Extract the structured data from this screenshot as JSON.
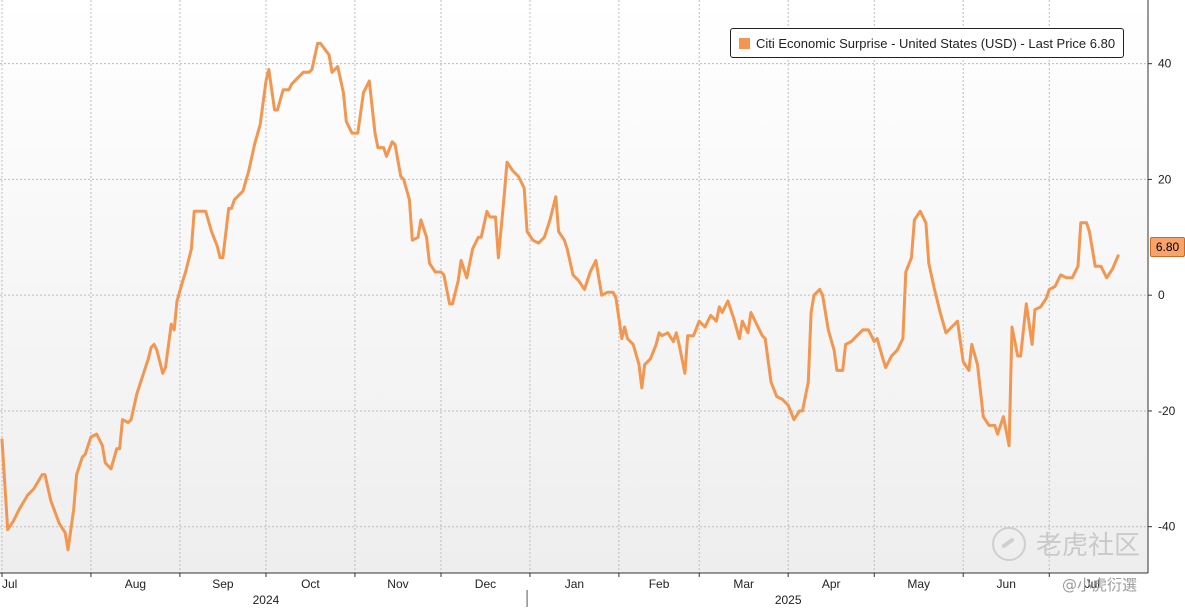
{
  "legend": {
    "label": "Citi Economic Surprise - United States (USD) - Last Price 6.80",
    "color": "#f29650"
  },
  "last_price_tag": "6.80",
  "watermark": {
    "text": "老虎社区",
    "handle": "@小虎衍選"
  },
  "colors": {
    "line": "#f29650",
    "grid": "#bdbdbd",
    "background_top": "#ffffff",
    "background_bottom": "#eeeeee"
  },
  "chart_data": {
    "type": "line",
    "title": "",
    "xlabel": "",
    "ylabel": "",
    "ylim": [
      -48,
      51
    ],
    "y_ticks": [
      40,
      20,
      0,
      -20,
      -40
    ],
    "y_tick_labels": [
      "40",
      "20",
      "0",
      "-20",
      "-40"
    ],
    "grid": true,
    "legend_position": "top-right",
    "x_range": [
      "2024-07-01",
      "2025-07-26"
    ],
    "x_ticks": [
      {
        "date": "2024-07-01",
        "label": "Jul"
      },
      {
        "date": "2024-08-01",
        "label": "Aug"
      },
      {
        "date": "2024-09-01",
        "label": "Sep"
      },
      {
        "date": "2024-10-01",
        "label": "Oct"
      },
      {
        "date": "2024-11-01",
        "label": "Nov"
      },
      {
        "date": "2024-12-01",
        "label": "Dec"
      },
      {
        "date": "2025-01-01",
        "label": "Jan"
      },
      {
        "date": "2025-02-01",
        "label": "Feb"
      },
      {
        "date": "2025-03-01",
        "label": "Mar"
      },
      {
        "date": "2025-04-01",
        "label": "Apr"
      },
      {
        "date": "2025-05-01",
        "label": "May"
      },
      {
        "date": "2025-06-01",
        "label": "Jun"
      },
      {
        "date": "2025-07-01",
        "label": "Jul"
      }
    ],
    "year_labels": [
      {
        "date": "2024-10-01",
        "label": "2024"
      },
      {
        "date": "2025-04-01",
        "label": "2025"
      }
    ],
    "year_divider": "2024-12-31",
    "series": [
      {
        "color": "#f29650",
        "points": [
          [
            "2024-07-01",
            -25
          ],
          [
            "2024-07-03",
            -40.5
          ],
          [
            "2024-07-05",
            -39
          ],
          [
            "2024-07-07",
            -37
          ],
          [
            "2024-07-10",
            -34.5
          ],
          [
            "2024-07-12",
            -33.5
          ],
          [
            "2024-07-15",
            -31
          ],
          [
            "2024-07-16",
            -31
          ],
          [
            "2024-07-18",
            -35.5
          ],
          [
            "2024-07-21",
            -39.5
          ],
          [
            "2024-07-23",
            -41
          ],
          [
            "2024-07-24",
            -44
          ],
          [
            "2024-07-26",
            -37
          ],
          [
            "2024-07-27",
            -31
          ],
          [
            "2024-07-29",
            -28
          ],
          [
            "2024-07-30",
            -27.5
          ],
          [
            "2024-08-01",
            -24.5
          ],
          [
            "2024-08-03",
            -24
          ],
          [
            "2024-08-05",
            -26
          ],
          [
            "2024-08-06",
            -29
          ],
          [
            "2024-08-08",
            -30
          ],
          [
            "2024-08-10",
            -26.5
          ],
          [
            "2024-08-11",
            -26.5
          ],
          [
            "2024-08-12",
            -21.5
          ],
          [
            "2024-08-14",
            -22
          ],
          [
            "2024-08-15",
            -21.5
          ],
          [
            "2024-08-17",
            -17
          ],
          [
            "2024-08-19",
            -14
          ],
          [
            "2024-08-21",
            -11
          ],
          [
            "2024-08-22",
            -9
          ],
          [
            "2024-08-23",
            -8.5
          ],
          [
            "2024-08-24",
            -9.5
          ],
          [
            "2024-08-26",
            -13.5
          ],
          [
            "2024-08-27",
            -12.5
          ],
          [
            "2024-08-29",
            -5
          ],
          [
            "2024-08-30",
            -6
          ],
          [
            "2024-08-31",
            -1
          ],
          [
            "2024-09-02",
            2.5
          ],
          [
            "2024-09-03",
            4
          ],
          [
            "2024-09-05",
            8
          ],
          [
            "2024-09-06",
            14.5
          ],
          [
            "2024-09-09",
            14.5
          ],
          [
            "2024-09-10",
            14.5
          ],
          [
            "2024-09-12",
            11
          ],
          [
            "2024-09-14",
            8.5
          ],
          [
            "2024-09-15",
            6.5
          ],
          [
            "2024-09-16",
            6.5
          ],
          [
            "2024-09-18",
            15
          ],
          [
            "2024-09-19",
            15
          ],
          [
            "2024-09-20",
            16.5
          ],
          [
            "2024-09-23",
            18
          ],
          [
            "2024-09-25",
            21.5
          ],
          [
            "2024-09-27",
            26
          ],
          [
            "2024-09-29",
            29.5
          ],
          [
            "2024-10-01",
            37
          ],
          [
            "2024-10-02",
            39
          ],
          [
            "2024-10-04",
            32
          ],
          [
            "2024-10-05",
            32
          ],
          [
            "2024-10-07",
            35.5
          ],
          [
            "2024-10-09",
            35.5
          ],
          [
            "2024-10-10",
            36.5
          ],
          [
            "2024-10-12",
            37.5
          ],
          [
            "2024-10-14",
            38.5
          ],
          [
            "2024-10-16",
            38.5
          ],
          [
            "2024-10-17",
            39
          ],
          [
            "2024-10-19",
            43.5
          ],
          [
            "2024-10-20",
            43.5
          ],
          [
            "2024-10-23",
            41.5
          ],
          [
            "2024-10-24",
            38.5
          ],
          [
            "2024-10-26",
            39.5
          ],
          [
            "2024-10-28",
            35
          ],
          [
            "2024-10-29",
            30
          ],
          [
            "2024-10-31",
            28
          ],
          [
            "2024-11-02",
            28
          ],
          [
            "2024-11-04",
            35
          ],
          [
            "2024-11-06",
            37
          ],
          [
            "2024-11-08",
            28
          ],
          [
            "2024-11-09",
            25.5
          ],
          [
            "2024-11-11",
            25.5
          ],
          [
            "2024-11-12",
            24
          ],
          [
            "2024-11-14",
            26.5
          ],
          [
            "2024-11-15",
            26
          ],
          [
            "2024-11-17",
            20.5
          ],
          [
            "2024-11-18",
            20
          ],
          [
            "2024-11-20",
            16.5
          ],
          [
            "2024-11-21",
            9.5
          ],
          [
            "2024-11-23",
            10
          ],
          [
            "2024-11-24",
            13
          ],
          [
            "2024-11-26",
            10
          ],
          [
            "2024-11-27",
            5.5
          ],
          [
            "2024-11-29",
            4
          ],
          [
            "2024-12-01",
            4
          ],
          [
            "2024-12-02",
            3.5
          ],
          [
            "2024-12-04",
            -1.5
          ],
          [
            "2024-12-05",
            -1.5
          ],
          [
            "2024-12-07",
            2.5
          ],
          [
            "2024-12-08",
            6
          ],
          [
            "2024-12-10",
            3
          ],
          [
            "2024-12-12",
            8
          ],
          [
            "2024-12-14",
            10
          ],
          [
            "2024-12-15",
            10
          ],
          [
            "2024-12-17",
            14.5
          ],
          [
            "2024-12-18",
            13.5
          ],
          [
            "2024-12-20",
            13.5
          ],
          [
            "2024-12-21",
            6.5
          ],
          [
            "2024-12-23",
            17
          ],
          [
            "2024-12-24",
            23
          ],
          [
            "2024-12-26",
            21.5
          ],
          [
            "2024-12-28",
            20.5
          ],
          [
            "2024-12-30",
            18.5
          ],
          [
            "2024-12-31",
            11
          ],
          [
            "2025-01-02",
            9.5
          ],
          [
            "2025-01-04",
            9
          ],
          [
            "2025-01-06",
            10
          ],
          [
            "2025-01-08",
            13
          ],
          [
            "2025-01-10",
            17
          ],
          [
            "2025-01-11",
            11
          ],
          [
            "2025-01-13",
            9.5
          ],
          [
            "2025-01-14",
            8
          ],
          [
            "2025-01-16",
            3.5
          ],
          [
            "2025-01-18",
            2.5
          ],
          [
            "2025-01-20",
            1
          ],
          [
            "2025-01-22",
            4
          ],
          [
            "2025-01-24",
            6
          ],
          [
            "2025-01-26",
            0
          ],
          [
            "2025-01-28",
            0.5
          ],
          [
            "2025-01-30",
            0.5
          ],
          [
            "2025-01-31",
            -0.5
          ],
          [
            "2025-02-02",
            -7.5
          ],
          [
            "2025-02-03",
            -5.5
          ],
          [
            "2025-02-04",
            -7.5
          ],
          [
            "2025-02-06",
            -8.5
          ],
          [
            "2025-02-08",
            -12
          ],
          [
            "2025-02-09",
            -16
          ],
          [
            "2025-02-10",
            -12
          ],
          [
            "2025-02-12",
            -11
          ],
          [
            "2025-02-14",
            -8.5
          ],
          [
            "2025-02-15",
            -6.5
          ],
          [
            "2025-02-16",
            -7
          ],
          [
            "2025-02-18",
            -6.5
          ],
          [
            "2025-02-20",
            -8
          ],
          [
            "2025-02-21",
            -6.5
          ],
          [
            "2025-02-22",
            -8.5
          ],
          [
            "2025-02-24",
            -13.5
          ],
          [
            "2025-02-25",
            -7
          ],
          [
            "2025-02-27",
            -7
          ],
          [
            "2025-03-01",
            -4.5
          ],
          [
            "2025-03-03",
            -5.5
          ],
          [
            "2025-03-05",
            -3.5
          ],
          [
            "2025-03-07",
            -4.5
          ],
          [
            "2025-03-08",
            -2
          ],
          [
            "2025-03-09",
            -3
          ],
          [
            "2025-03-11",
            -1
          ],
          [
            "2025-03-13",
            -4
          ],
          [
            "2025-03-15",
            -7.5
          ],
          [
            "2025-03-16",
            -4.5
          ],
          [
            "2025-03-18",
            -6.5
          ],
          [
            "2025-03-19",
            -3
          ],
          [
            "2025-03-21",
            -5
          ],
          [
            "2025-03-23",
            -7
          ],
          [
            "2025-03-24",
            -7.5
          ],
          [
            "2025-03-26",
            -15
          ],
          [
            "2025-03-28",
            -17.5
          ],
          [
            "2025-03-30",
            -18
          ],
          [
            "2025-04-01",
            -19
          ],
          [
            "2025-04-03",
            -21.5
          ],
          [
            "2025-04-05",
            -20
          ],
          [
            "2025-04-06",
            -20
          ],
          [
            "2025-04-08",
            -15
          ],
          [
            "2025-04-09",
            -3
          ],
          [
            "2025-04-10",
            0
          ],
          [
            "2025-04-12",
            1
          ],
          [
            "2025-04-13",
            0
          ],
          [
            "2025-04-15",
            -6
          ],
          [
            "2025-04-17",
            -9.5
          ],
          [
            "2025-04-18",
            -13
          ],
          [
            "2025-04-20",
            -13
          ],
          [
            "2025-04-21",
            -8.5
          ],
          [
            "2025-04-23",
            -8
          ],
          [
            "2025-04-25",
            -7
          ],
          [
            "2025-04-27",
            -6
          ],
          [
            "2025-04-29",
            -6
          ],
          [
            "2025-05-01",
            -8
          ],
          [
            "2025-05-02",
            -7.5
          ],
          [
            "2025-05-04",
            -11
          ],
          [
            "2025-05-05",
            -12.5
          ],
          [
            "2025-05-07",
            -10.5
          ],
          [
            "2025-05-09",
            -9.5
          ],
          [
            "2025-05-11",
            -7.5
          ],
          [
            "2025-05-12",
            4
          ],
          [
            "2025-05-14",
            6.5
          ],
          [
            "2025-05-15",
            13
          ],
          [
            "2025-05-17",
            14.5
          ],
          [
            "2025-05-19",
            12.5
          ],
          [
            "2025-05-20",
            5.5
          ],
          [
            "2025-05-22",
            1
          ],
          [
            "2025-05-24",
            -3
          ],
          [
            "2025-05-26",
            -6.5
          ],
          [
            "2025-05-28",
            -5.5
          ],
          [
            "2025-05-30",
            -4.5
          ],
          [
            "2025-06-01",
            -11.5
          ],
          [
            "2025-06-03",
            -13
          ],
          [
            "2025-06-04",
            -8.5
          ],
          [
            "2025-06-06",
            -12
          ],
          [
            "2025-06-08",
            -21
          ],
          [
            "2025-06-10",
            -22.5
          ],
          [
            "2025-06-12",
            -22.5
          ],
          [
            "2025-06-13",
            -24
          ],
          [
            "2025-06-15",
            -21
          ],
          [
            "2025-06-17",
            -26
          ],
          [
            "2025-06-18",
            -5.5
          ],
          [
            "2025-06-20",
            -10.5
          ],
          [
            "2025-06-21",
            -10.5
          ],
          [
            "2025-06-23",
            -1.5
          ],
          [
            "2025-06-25",
            -8.5
          ],
          [
            "2025-06-26",
            -2.5
          ],
          [
            "2025-06-28",
            -2
          ],
          [
            "2025-06-30",
            -0.5
          ],
          [
            "2025-07-01",
            1
          ],
          [
            "2025-07-03",
            1.5
          ],
          [
            "2025-07-05",
            3.5
          ],
          [
            "2025-07-07",
            3
          ],
          [
            "2025-07-09",
            3
          ],
          [
            "2025-07-11",
            5
          ],
          [
            "2025-07-12",
            12.5
          ],
          [
            "2025-07-14",
            12.5
          ],
          [
            "2025-07-15",
            11
          ],
          [
            "2025-07-17",
            5
          ],
          [
            "2025-07-19",
            5
          ],
          [
            "2025-07-21",
            3
          ],
          [
            "2025-07-23",
            4.5
          ],
          [
            "2025-07-25",
            6.8
          ]
        ]
      }
    ]
  }
}
